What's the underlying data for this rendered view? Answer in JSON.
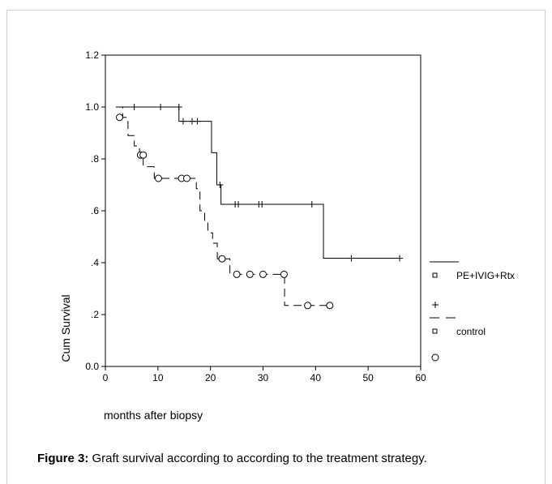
{
  "chart_data": {
    "type": "line",
    "xlabel": "months after biopsy",
    "ylabel": "Cum Survival",
    "xlim": [
      0,
      60
    ],
    "ylim": [
      0.0,
      1.2
    ],
    "x_ticks": [
      "0",
      "10",
      "20",
      "30",
      "40",
      "50",
      "60"
    ],
    "y_ticks": [
      "0.0",
      ".2",
      ".4",
      ".6",
      ".8",
      "1.0",
      "1.2"
    ],
    "grid": false,
    "legend_position": "right",
    "legend": {
      "series1_label": "PE+IVIG+Rtx",
      "series2_label": "control"
    },
    "series": [
      {
        "name": "PE+IVIG+Rtx",
        "style": "solid",
        "censor_marker": "+",
        "steps": [
          [
            0,
            1.0
          ],
          [
            14.0,
            0.945
          ],
          [
            20.2,
            0.824
          ],
          [
            21.2,
            0.7
          ],
          [
            22.0,
            0.625
          ],
          [
            41.5,
            0.417
          ],
          [
            56.0,
            0.417
          ]
        ],
        "start_x": 2,
        "censored": [
          [
            5.5,
            1.0
          ],
          [
            10.5,
            1.0
          ],
          [
            14,
            1.0
          ],
          [
            14.8,
            0.945
          ],
          [
            16.5,
            0.945
          ],
          [
            17.5,
            0.945
          ],
          [
            21.8,
            0.7
          ],
          [
            24.7,
            0.625
          ],
          [
            25.3,
            0.625
          ],
          [
            29.2,
            0.625
          ],
          [
            29.8,
            0.625
          ],
          [
            39.3,
            0.625
          ],
          [
            46.8,
            0.417
          ],
          [
            56.0,
            0.417
          ]
        ]
      },
      {
        "name": "control",
        "style": "dashed",
        "censor_marker": "o",
        "steps": [
          [
            0,
            1.0
          ],
          [
            3.3,
            0.96
          ],
          [
            4.3,
            0.89
          ],
          [
            5.5,
            0.85
          ],
          [
            6.5,
            0.815
          ],
          [
            7.2,
            0.77
          ],
          [
            8.3,
            0.77
          ],
          [
            9.3,
            0.725
          ],
          [
            17.3,
            0.685
          ],
          [
            18.0,
            0.6
          ],
          [
            18.9,
            0.555
          ],
          [
            19.5,
            0.515
          ],
          [
            20.4,
            0.475
          ],
          [
            21.3,
            0.415
          ],
          [
            23.7,
            0.355
          ],
          [
            34.1,
            0.235
          ],
          [
            42.7,
            0.235
          ]
        ],
        "start_x": 2,
        "censored": [
          [
            2.7,
            0.96
          ],
          [
            6.7,
            0.815
          ],
          [
            7.2,
            0.815
          ],
          [
            10.1,
            0.725
          ],
          [
            14.5,
            0.725
          ],
          [
            15.5,
            0.725
          ],
          [
            22.2,
            0.415
          ],
          [
            25.0,
            0.355
          ],
          [
            27.5,
            0.355
          ],
          [
            30.0,
            0.355
          ],
          [
            34.0,
            0.355
          ],
          [
            38.5,
            0.235
          ],
          [
            42.7,
            0.235
          ]
        ]
      }
    ]
  },
  "caption": {
    "label": "Figure 3:",
    "text": " Graft survival according to according to the treatment strategy."
  }
}
